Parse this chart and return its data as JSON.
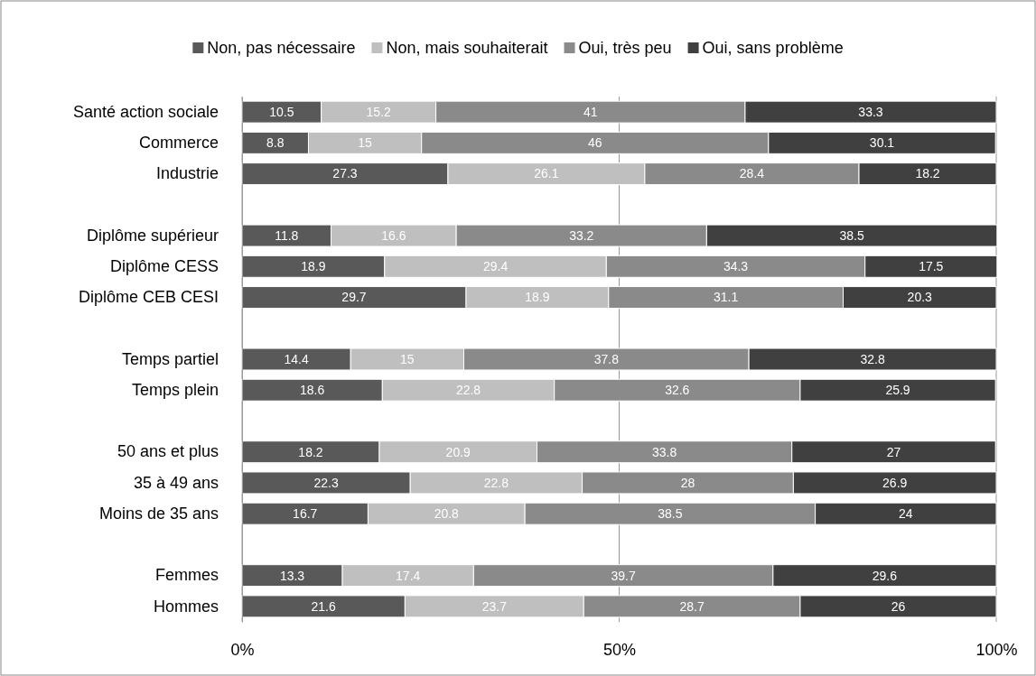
{
  "chart_data": {
    "type": "bar",
    "orientation": "horizontal",
    "stacked": true,
    "categories": [
      "Santé action sociale",
      "Commerce",
      "Industrie",
      null,
      "Diplôme supérieur",
      "Diplôme CESS",
      "Diplôme CEB CESI",
      null,
      "Temps partiel",
      "Temps plein",
      null,
      "50 ans et plus",
      "35 à 49 ans",
      "Moins de 35 ans",
      null,
      "Femmes",
      "Hommes"
    ],
    "series": [
      {
        "name": "Non, pas nécessaire",
        "color": "#595959",
        "values": [
          10.5,
          8.8,
          27.3,
          null,
          11.8,
          18.9,
          29.7,
          null,
          14.4,
          18.6,
          null,
          18.2,
          22.3,
          16.7,
          null,
          13.3,
          21.6
        ]
      },
      {
        "name": "Non, mais souhaiterait",
        "color": "#bfbfbf",
        "values": [
          15.2,
          15,
          26.1,
          null,
          16.6,
          29.4,
          18.9,
          null,
          15,
          22.8,
          null,
          20.9,
          22.8,
          20.8,
          null,
          17.4,
          23.7
        ]
      },
      {
        "name": "Oui, très peu",
        "color": "#8a8a8a",
        "values": [
          41,
          46,
          28.4,
          null,
          33.2,
          34.3,
          31.1,
          null,
          37.8,
          32.6,
          null,
          33.8,
          28,
          38.5,
          null,
          39.7,
          28.7
        ]
      },
      {
        "name": "Oui, sans problème",
        "color": "#404040",
        "values": [
          33.3,
          30.1,
          18.2,
          null,
          38.5,
          17.5,
          20.3,
          null,
          32.8,
          25.9,
          null,
          27,
          26.9,
          24,
          null,
          29.6,
          26
        ]
      }
    ],
    "xlim": [
      0,
      100
    ],
    "xticks": [
      {
        "value": 0,
        "label": "0%"
      },
      {
        "value": 50,
        "label": "50%"
      },
      {
        "value": 100,
        "label": "100%"
      }
    ],
    "grid": "x",
    "legend": "top",
    "data_labels": true
  }
}
